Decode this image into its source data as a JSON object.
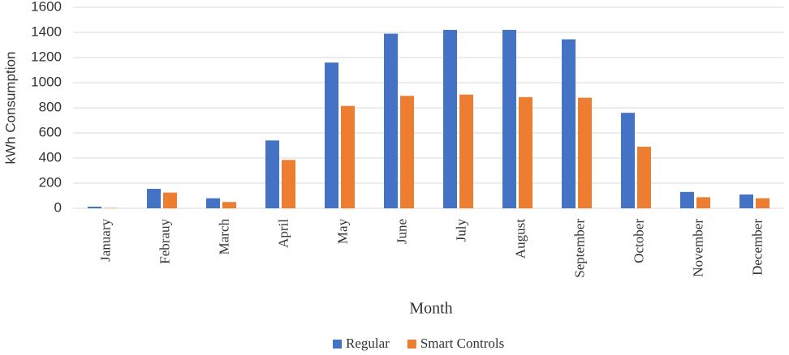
{
  "chart_data": {
    "type": "bar",
    "y_label": "kWh Consumption",
    "x_label": "Month",
    "categories": [
      "January",
      "Febrauy",
      "March",
      "April",
      "May",
      "June",
      "July",
      "August",
      "September",
      "October",
      "November",
      "December"
    ],
    "series": [
      {
        "name": "Regular",
        "color": "#4472c4",
        "values": [
          13,
          155,
          80,
          540,
          1160,
          1390,
          1420,
          1420,
          1345,
          760,
          130,
          110
        ]
      },
      {
        "name": "Smart Controls",
        "color": "#ed7d31",
        "values": [
          3,
          125,
          50,
          385,
          815,
          895,
          905,
          885,
          880,
          490,
          88,
          80
        ]
      }
    ],
    "ylim": [
      0,
      1600
    ],
    "yticks": [
      0,
      200,
      400,
      600,
      800,
      1000,
      1200,
      1400,
      1600
    ],
    "grid": true
  }
}
